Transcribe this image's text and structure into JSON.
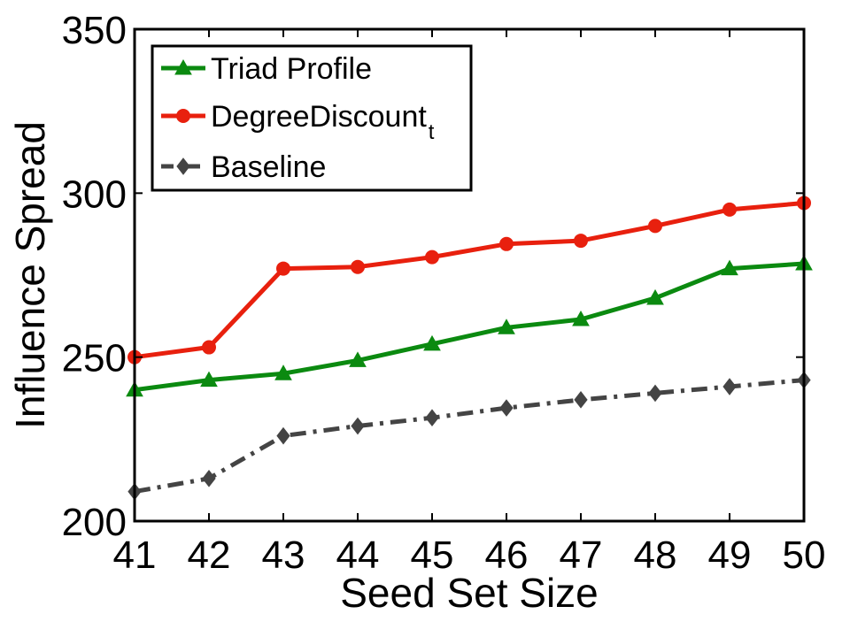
{
  "chart_data": {
    "type": "line",
    "title": "",
    "xlabel": "Seed Set Size",
    "ylabel": "Influence Spread",
    "x": [
      41,
      42,
      43,
      44,
      45,
      46,
      47,
      48,
      49,
      50
    ],
    "xlim": [
      41,
      50
    ],
    "ylim": [
      200,
      350
    ],
    "yticks": [
      200,
      250,
      300,
      350
    ],
    "grid": false,
    "legend_position": "top-left",
    "series": [
      {
        "name": "Triad Profile",
        "color": "#0b8a10",
        "marker": "triangle",
        "line_style": "solid",
        "values": [
          240,
          243,
          245,
          249,
          254,
          259,
          261.5,
          268,
          277,
          278.5
        ]
      },
      {
        "name": "DegreeDiscount",
        "name_subscript": "t",
        "color": "#e8200e",
        "marker": "circle",
        "line_style": "solid",
        "values": [
          250,
          253,
          277,
          277.5,
          280.5,
          284.5,
          285.5,
          290,
          295,
          297
        ]
      },
      {
        "name": "Baseline",
        "color": "#444444",
        "marker": "diamond",
        "line_style": "dash-dot",
        "values": [
          209,
          213,
          226,
          229,
          231.5,
          234.5,
          237,
          239,
          241,
          243
        ]
      }
    ]
  }
}
